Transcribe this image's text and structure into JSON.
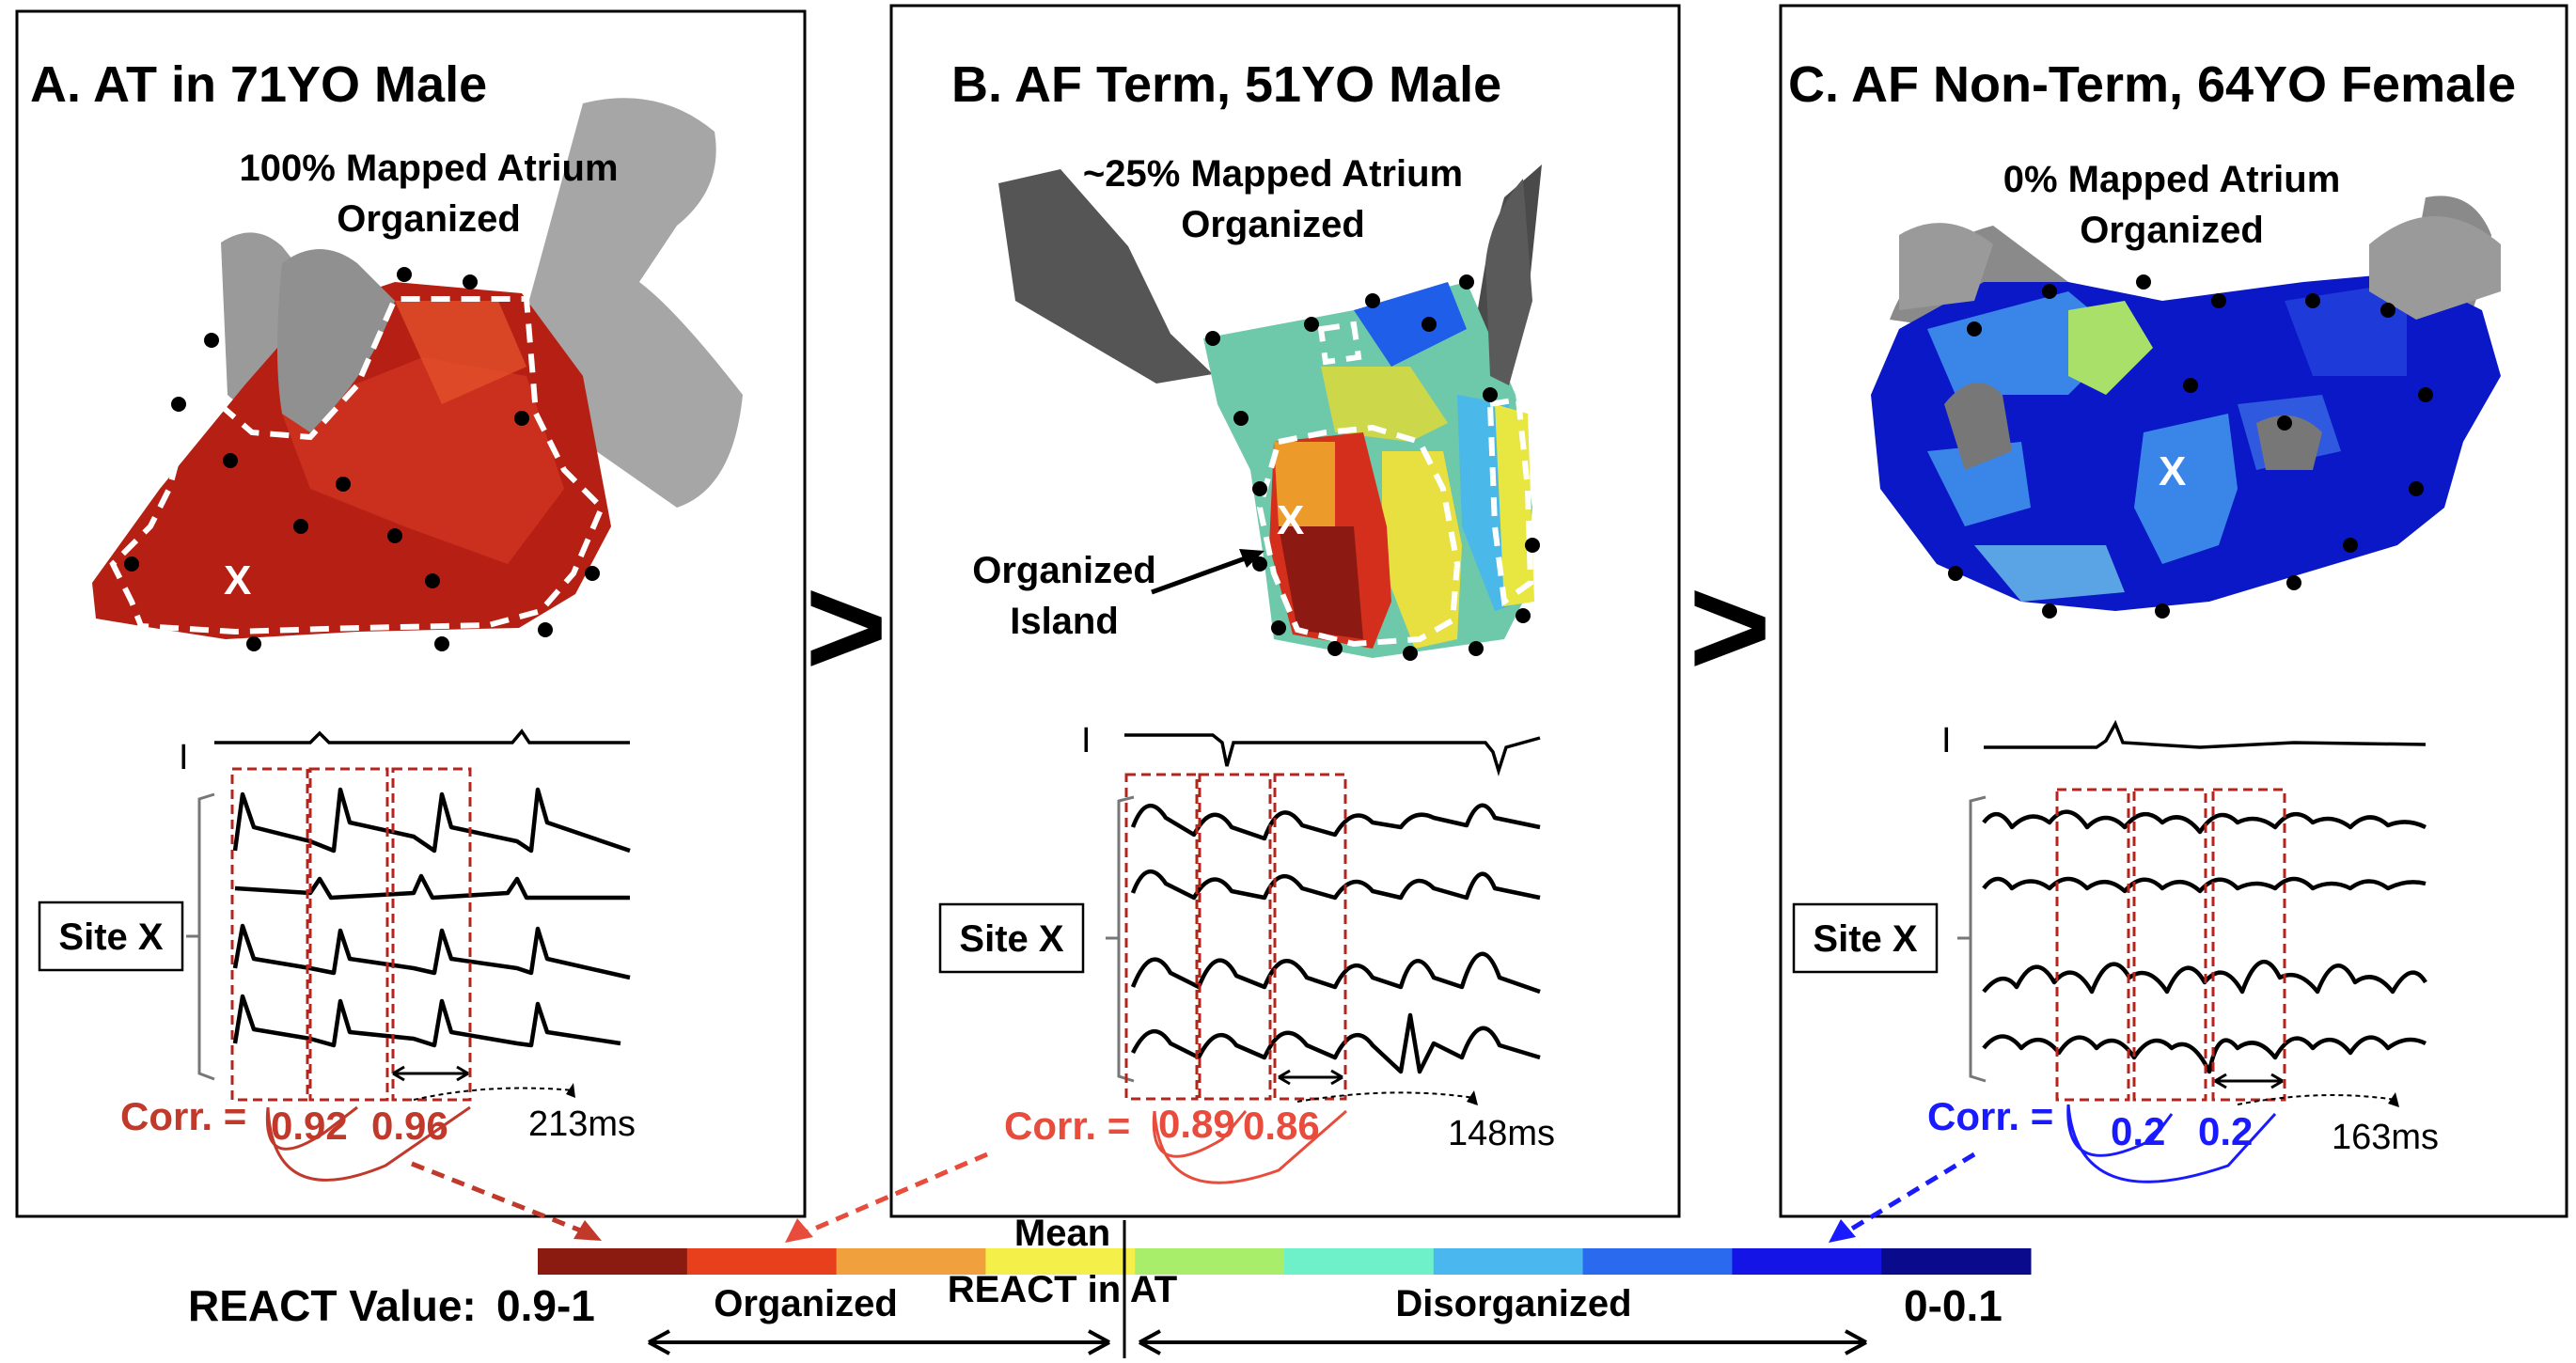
{
  "panels": [
    {
      "title": "A. AT in 71YO Male",
      "map_caption_1": "100% Mapped Atrium",
      "map_caption_2": "Organized",
      "ecg_label": "I",
      "site_label": "Site X",
      "site_marker": "X",
      "corr_label": "Corr. =",
      "corr_values": [
        "0.92",
        "0.96"
      ],
      "cycle_length": "213ms",
      "corr_color": "#c0392b"
    },
    {
      "title": "B. AF Term, 51YO Male",
      "map_caption_1": "~25% Mapped Atrium",
      "map_caption_2": "Organized",
      "ecg_label": "I",
      "site_label": "Site X",
      "site_marker": "X",
      "island_label_1": "Organized",
      "island_label_2": "Island",
      "corr_label": "Corr. =",
      "corr_values": [
        "0.89",
        "0.86"
      ],
      "cycle_length": "148ms",
      "corr_color": "#e74c3c"
    },
    {
      "title": "C. AF Non-Term, 64YO Female",
      "map_caption_1": "0% Mapped Atrium",
      "map_caption_2": "Organized",
      "ecg_label": "I",
      "site_label": "Site X",
      "site_marker": "X",
      "corr_label": "Corr. =",
      "corr_values": [
        "0.2",
        "0.2"
      ],
      "cycle_length": "163ms",
      "corr_color": "#1a1aff"
    }
  ],
  "comparison_symbol": ">",
  "colorbar": {
    "label": "REACT Value:",
    "high_value": "0.9-1",
    "low_value": "0-0.1",
    "mean_label_1": "Mean",
    "mean_label_2": "REACT in AT",
    "organized_label": "Organized",
    "disorganized_label": "Disorganized",
    "colors": [
      "#8b1a10",
      "#e8401c",
      "#f0a03c",
      "#f5ef4a",
      "#a8ee6a",
      "#6ef0c8",
      "#4ab8ee",
      "#2a6aee",
      "#1414e6",
      "#0a0a8c"
    ]
  }
}
